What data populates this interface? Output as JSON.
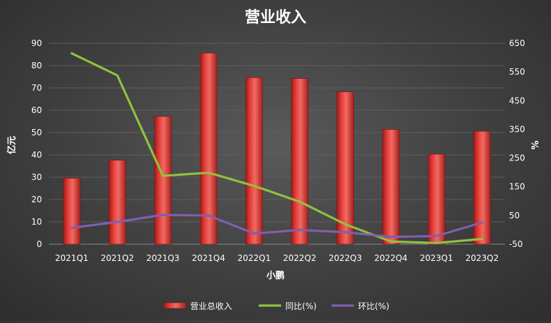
{
  "chart_data": {
    "type": "bar",
    "title": "营业收入",
    "xlabel": "小鹏",
    "ylabel": "亿元",
    "y2label": "%",
    "categories": [
      "2021Q1",
      "2021Q2",
      "2021Q3",
      "2021Q4",
      "2022Q1",
      "2022Q2",
      "2022Q3",
      "2022Q4",
      "2023Q1",
      "2023Q2"
    ],
    "ylim": [
      0,
      90
    ],
    "yticks": [
      0,
      10,
      20,
      30,
      40,
      50,
      60,
      70,
      80,
      90
    ],
    "y2lim": [
      -50,
      650
    ],
    "y2ticks": [
      -50,
      50,
      150,
      250,
      350,
      450,
      550,
      650
    ],
    "grid": true,
    "legend_position": "bottom",
    "series": [
      {
        "name": "营业总收入",
        "type": "bar",
        "axis": "left",
        "color": "#e0322e",
        "values": [
          29.5,
          37.6,
          57.2,
          85.6,
          74.6,
          74.2,
          68.2,
          51.4,
          40.3,
          50.6
        ]
      },
      {
        "name": "同比(%)",
        "type": "line",
        "axis": "right",
        "color": "#8fc23f",
        "values": [
          615,
          538,
          188,
          199,
          153,
          98,
          19.3,
          -40.5,
          -45.9,
          -31.8
        ]
      },
      {
        "name": "环比(%)",
        "type": "line",
        "axis": "right",
        "color": "#7e5fb0",
        "values": [
          7,
          27.5,
          52.1,
          49.8,
          -12.9,
          -0.6,
          -8.1,
          -24.6,
          -21.7,
          25.6
        ]
      }
    ]
  }
}
